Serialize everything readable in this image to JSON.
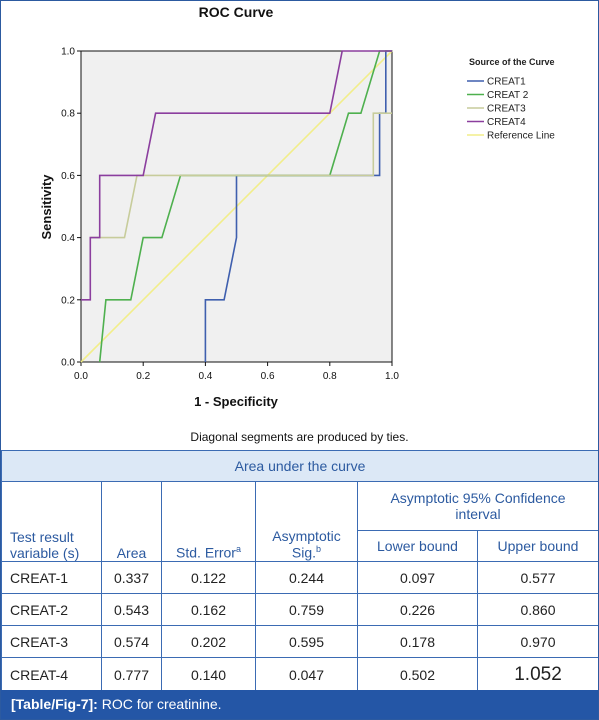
{
  "chart_data": {
    "type": "line",
    "title": "ROC Curve",
    "xlabel": "1 - Specificity",
    "ylabel": "Sensitivity",
    "xlim": [
      0,
      1
    ],
    "ylim": [
      0,
      1
    ],
    "x_ticks": [
      "0.0",
      "0.2",
      "0.4",
      "0.6",
      "0.8",
      "1.0"
    ],
    "y_ticks": [
      "0.0",
      "0.2",
      "0.4",
      "0.6",
      "0.8",
      "1.0"
    ],
    "legend_title": "Source of the Curve",
    "legend_position": "right",
    "grid": false,
    "note": "Diagonal segments are produced by ties.",
    "series": [
      {
        "name": "CREAT1",
        "color": "#3f5fae",
        "points": [
          [
            0.4,
            0
          ],
          [
            0.4,
            0.2
          ],
          [
            0.46,
            0.2
          ],
          [
            0.5,
            0.4
          ],
          [
            0.5,
            0.6
          ],
          [
            0.96,
            0.6
          ],
          [
            0.96,
            0.8
          ],
          [
            0.98,
            0.8
          ],
          [
            0.98,
            1.0
          ],
          [
            1.0,
            1.0
          ]
        ]
      },
      {
        "name": "CREAT 2",
        "color": "#4eb04e",
        "points": [
          [
            0.06,
            0
          ],
          [
            0.08,
            0.2
          ],
          [
            0.16,
            0.2
          ],
          [
            0.2,
            0.4
          ],
          [
            0.26,
            0.4
          ],
          [
            0.32,
            0.6
          ],
          [
            0.8,
            0.6
          ],
          [
            0.86,
            0.8
          ],
          [
            0.9,
            0.8
          ],
          [
            0.96,
            1.0
          ],
          [
            1.0,
            1.0
          ]
        ]
      },
      {
        "name": "CREAT3",
        "color": "#c7cc9b",
        "points": [
          [
            0.03,
            0.4
          ],
          [
            0.14,
            0.4
          ],
          [
            0.18,
            0.6
          ],
          [
            0.94,
            0.6
          ],
          [
            0.94,
            0.8
          ],
          [
            1.0,
            0.8
          ]
        ]
      },
      {
        "name": "CREAT4",
        "color": "#8b3e9e",
        "points": [
          [
            0,
            0.2
          ],
          [
            0.03,
            0.2
          ],
          [
            0.03,
            0.4
          ],
          [
            0.06,
            0.4
          ],
          [
            0.06,
            0.6
          ],
          [
            0.2,
            0.6
          ],
          [
            0.24,
            0.8
          ],
          [
            0.8,
            0.8
          ],
          [
            0.84,
            1.0
          ],
          [
            1.0,
            1.0
          ]
        ]
      },
      {
        "name": "Reference Line",
        "color": "#f2ee8a",
        "points": [
          [
            0,
            0
          ],
          [
            1,
            1
          ]
        ]
      }
    ]
  },
  "table": {
    "title": "Area under the curve",
    "headers": {
      "variable": "Test result variable (s)",
      "area": "Area",
      "std_error": "Std. Error",
      "std_error_sup": "a",
      "asym_sig": "Asymptotic Sig.",
      "asym_sig_sup": "b",
      "ci": "Asymptotic 95% Confidence interval",
      "lower": "Lower bound",
      "upper": "Upper bound"
    },
    "rows": [
      {
        "variable": "CREAT-1",
        "area": "0.337",
        "std_error": "0.122",
        "sig": "0.244",
        "lower": "0.097",
        "upper": "0.577"
      },
      {
        "variable": "CREAT-2",
        "area": "0.543",
        "std_error": "0.162",
        "sig": "0.759",
        "lower": "0.226",
        "upper": "0.860"
      },
      {
        "variable": "CREAT-3",
        "area": "0.574",
        "std_error": "0.202",
        "sig": "0.595",
        "lower": "0.178",
        "upper": "0.970"
      },
      {
        "variable": "CREAT-4",
        "area": "0.777",
        "std_error": "0.140",
        "sig": "0.047",
        "lower": "0.502",
        "upper": "1.052"
      }
    ]
  },
  "caption": {
    "label": "[Table/Fig-7]:",
    "text": " ROC for creatinine."
  }
}
